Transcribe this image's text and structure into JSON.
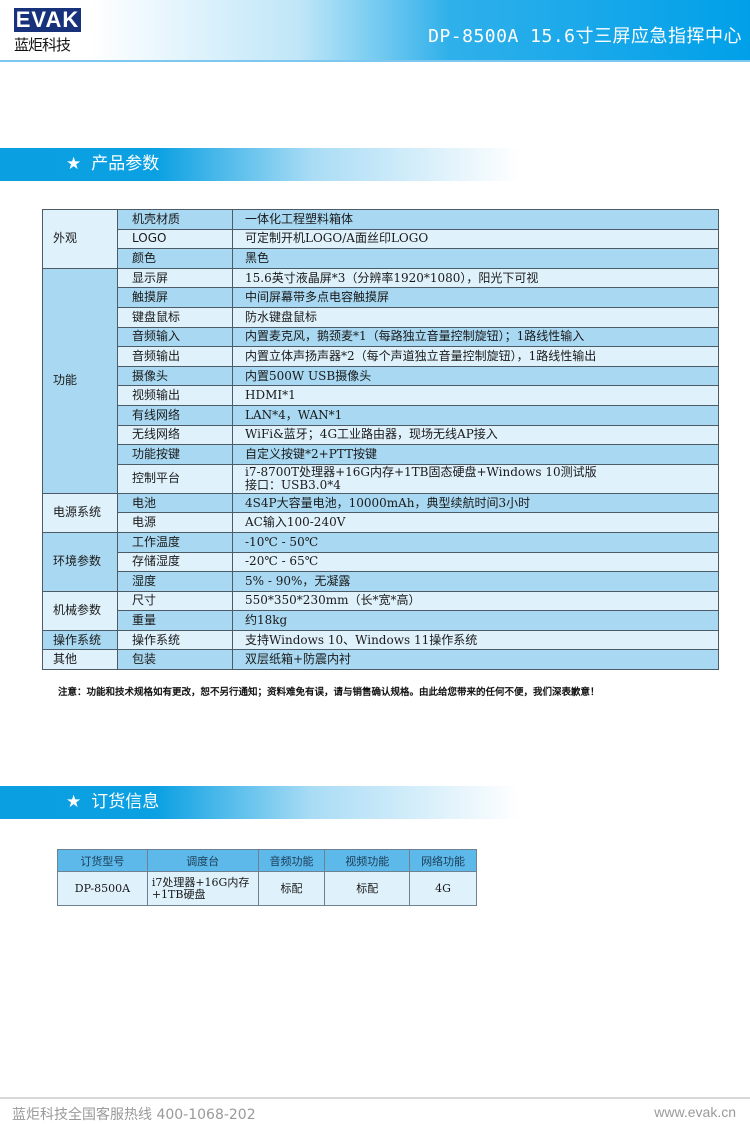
{
  "header": {
    "logo_mark": "EVAK",
    "logo_cn": "蓝炬科技",
    "title": "DP-8500A 15.6寸三屏应急指挥中心"
  },
  "colors": {
    "brand_blue": "#00a0e9",
    "row_dark": "#a9d9f2",
    "row_light": "#dff1fb",
    "logo_navy": "#17317a"
  },
  "spec_section": {
    "icon": "star-icon",
    "title": "产品参数"
  },
  "spec_groups": [
    {
      "category": "外观",
      "rows": [
        {
          "label": "机壳材质",
          "value": "一体化工程塑料箱体"
        },
        {
          "label": "LOGO",
          "value": "可定制开机LOGO/A面丝印LOGO"
        },
        {
          "label": "颜色",
          "value": "黑色"
        }
      ]
    },
    {
      "category": "功能",
      "rows": [
        {
          "label": "显示屏",
          "value": "15.6英寸液晶屏*3（分辨率1920*1080），阳光下可视"
        },
        {
          "label": "触摸屏",
          "value": "中间屏幕带多点电容触摸屏"
        },
        {
          "label": "键盘鼠标",
          "value": "防水键盘鼠标"
        },
        {
          "label": "音频输入",
          "value": "内置麦克风，鹅颈麦*1（每路独立音量控制旋钮）；1路线性输入"
        },
        {
          "label": "音频输出",
          "value": "内置立体声扬声器*2（每个声道独立音量控制旋钮），1路线性输出"
        },
        {
          "label": "摄像头",
          "value": "内置500W USB摄像头"
        },
        {
          "label": "视频输出",
          "value": "HDMI*1"
        },
        {
          "label": "有线网络",
          "value": "LAN*4，WAN*1"
        },
        {
          "label": "无线网络",
          "value": "WiFi&蓝牙；4G工业路由器，现场无线AP接入"
        },
        {
          "label": "功能按键",
          "value": "自定义按键*2+PTT按键"
        },
        {
          "label": "控制平台",
          "value": "i7-8700T处理器+16G内存+1TB固态硬盘+Windows 10测试版",
          "value2": "接口：USB3.0*4"
        }
      ]
    },
    {
      "category": "电源系统",
      "rows": [
        {
          "label": "电池",
          "value": "4S4P大容量电池，10000mAh，典型续航时间3小时"
        },
        {
          "label": "电源",
          "value": "AC输入100-240V"
        }
      ]
    },
    {
      "category": "环境参数",
      "rows": [
        {
          "label": "工作温度",
          "value": "-10℃ - 50℃"
        },
        {
          "label": "存储湿度",
          "value": "-20℃ - 65℃"
        },
        {
          "label": "湿度",
          "value": "5% - 90%，无凝露"
        }
      ]
    },
    {
      "category": "机械参数",
      "rows": [
        {
          "label": "尺寸",
          "value": "550*350*230mm（长*宽*高）"
        },
        {
          "label": "重量",
          "value": "约18kg"
        }
      ]
    },
    {
      "category": "操作系统",
      "rows": [
        {
          "label": "操作系统",
          "value": "支持Windows 10、Windows 11操作系统"
        }
      ]
    },
    {
      "category": "其他",
      "rows": [
        {
          "label": "包装",
          "value": "双层纸箱+防震内衬"
        }
      ]
    }
  ],
  "note": "注意：功能和技术规格如有更改，恕不另行通知；资料难免有误，请与销售确认规格。由此给您带来的任何不便，我们深表歉意！",
  "order_section": {
    "icon": "star-icon",
    "title": "订货信息"
  },
  "order_table": {
    "headers": [
      "订货型号",
      "调度台",
      "音频功能",
      "视频功能",
      "网络功能"
    ],
    "row": [
      "DP-8500A",
      "i7处理器+16G内存",
      "+1TB硬盘",
      "标配",
      "标配",
      "4G"
    ]
  },
  "footer": {
    "hotline": "蓝炬科技全国客服热线  400-1068-202",
    "website": "www.evak.cn"
  }
}
